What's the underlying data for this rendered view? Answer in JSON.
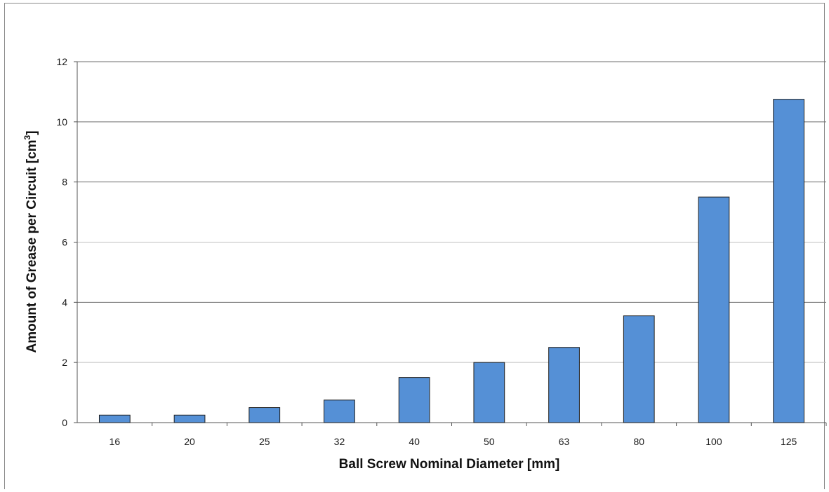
{
  "chart_data": {
    "type": "bar",
    "categories": [
      "16",
      "20",
      "25",
      "32",
      "40",
      "50",
      "63",
      "80",
      "100",
      "125"
    ],
    "values": [
      0.25,
      0.25,
      0.5,
      0.75,
      1.5,
      2.0,
      2.5,
      3.55,
      7.5,
      10.75
    ],
    "title": "",
    "xlabel": "Ball Screw Nominal Diameter [mm]",
    "ylabel_main": "Amount of Grease per Circuit [cm",
    "ylabel_sup": "3",
    "ylabel_end": "]",
    "ylim": [
      0,
      12
    ],
    "yticks": [
      "0",
      "2",
      "4",
      "6",
      "8",
      "10",
      "12"
    ],
    "grid": true,
    "legend": "none",
    "bar_color": "#5590d6",
    "bar_edge_color": "#1f1f1f",
    "grid_colors": {
      "minor": "#c0c0c0",
      "major": "#6e6e6e"
    }
  }
}
